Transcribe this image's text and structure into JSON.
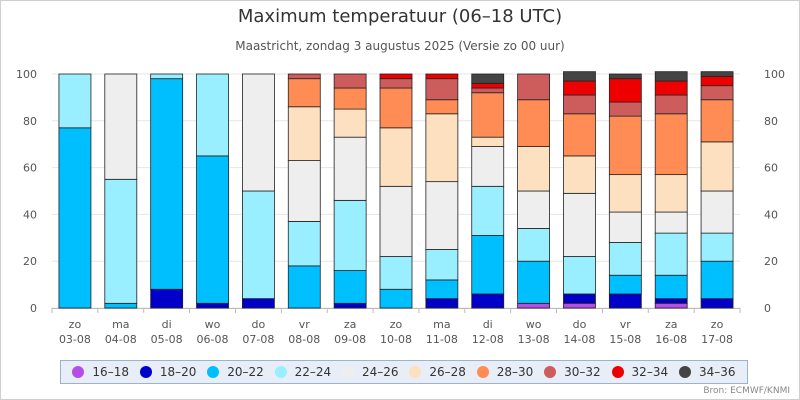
{
  "chart_data": {
    "type": "bar",
    "stacked": true,
    "title": "Maximum temperatuur (06–18 UTC)",
    "subtitle": "Maastricht, zondag 3 augustus 2025 (Versie zo 00 uur)",
    "categories": [
      {
        "day": "zo",
        "date": "03-08"
      },
      {
        "day": "ma",
        "date": "04-08"
      },
      {
        "day": "di",
        "date": "05-08"
      },
      {
        "day": "wo",
        "date": "06-08"
      },
      {
        "day": "do",
        "date": "07-08"
      },
      {
        "day": "vr",
        "date": "08-08"
      },
      {
        "day": "za",
        "date": "09-08"
      },
      {
        "day": "zo",
        "date": "10-08"
      },
      {
        "day": "ma",
        "date": "11-08"
      },
      {
        "day": "di",
        "date": "12-08"
      },
      {
        "day": "wo",
        "date": "13-08"
      },
      {
        "day": "do",
        "date": "14-08"
      },
      {
        "day": "vr",
        "date": "15-08"
      },
      {
        "day": "za",
        "date": "16-08"
      },
      {
        "day": "zo",
        "date": "17-08"
      }
    ],
    "ylim": [
      0,
      100
    ],
    "yticks": [
      0,
      20,
      40,
      60,
      80,
      100
    ],
    "grid": true,
    "legend_position": "bottom",
    "series": [
      {
        "name": "16–18",
        "color": "#b44fe6",
        "values": [
          0,
          0,
          0,
          0,
          0,
          0,
          0,
          0,
          0,
          0,
          2,
          2,
          0,
          2,
          0
        ]
      },
      {
        "name": "18–20",
        "color": "#0000c8",
        "values": [
          0,
          0,
          8,
          2,
          4,
          0,
          2,
          0,
          4,
          6,
          0,
          4,
          6,
          2,
          4
        ]
      },
      {
        "name": "20–22",
        "color": "#00bfff",
        "values": [
          77,
          2,
          90,
          63,
          0,
          18,
          14,
          8,
          8,
          25,
          18,
          0,
          8,
          10,
          16
        ]
      },
      {
        "name": "22–24",
        "color": "#99eeff",
        "values": [
          23,
          53,
          2,
          35,
          46,
          19,
          30,
          14,
          13,
          21,
          14,
          16,
          14,
          18,
          12
        ]
      },
      {
        "name": "24–26",
        "color": "#eeeeee",
        "values": [
          0,
          45,
          0,
          0,
          50,
          26,
          27,
          30,
          29,
          17,
          16,
          27,
          13,
          9,
          18
        ]
      },
      {
        "name": "26–28",
        "color": "#fde0c0",
        "values": [
          0,
          0,
          0,
          0,
          0,
          23,
          12,
          25,
          29,
          4,
          19,
          16,
          16,
          16,
          21
        ]
      },
      {
        "name": "28–30",
        "color": "#ff8c55",
        "values": [
          0,
          0,
          0,
          0,
          0,
          12,
          9,
          17,
          6,
          19,
          20,
          18,
          25,
          26,
          18
        ]
      },
      {
        "name": "30–32",
        "color": "#cd5c5c",
        "values": [
          0,
          0,
          0,
          0,
          0,
          2,
          6,
          4,
          9,
          2,
          11,
          8,
          6,
          8,
          6
        ]
      },
      {
        "name": "32–34",
        "color": "#ee0000",
        "values": [
          0,
          0,
          0,
          0,
          0,
          0,
          0,
          2,
          2,
          2,
          0,
          6,
          10,
          6,
          4
        ]
      },
      {
        "name": "34–36",
        "color": "#444444",
        "values": [
          0,
          0,
          0,
          0,
          0,
          0,
          0,
          0,
          0,
          4,
          0,
          4,
          2,
          4,
          2
        ]
      }
    ]
  },
  "credits": "Bron: ECMWF/KNMI"
}
